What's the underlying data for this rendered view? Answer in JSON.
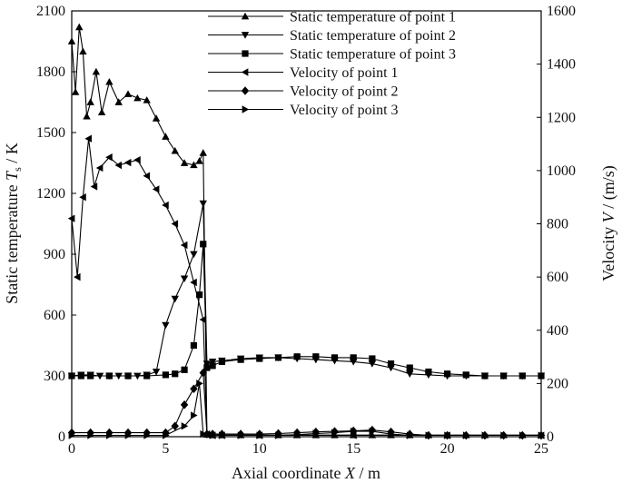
{
  "chart_data": {
    "type": "line",
    "title": "",
    "xlabel": "Axial coordinate X / m",
    "ylabel_left": "Static temperature T_s / K",
    "ylabel_right": "Velocity V / (m/s)",
    "xlabel_parts": {
      "pre": "Axial coordinate ",
      "var": "X",
      "post": " / m"
    },
    "ylabel_left_parts": {
      "pre": "Static temperature ",
      "var": "T",
      "sub": "s",
      "post": " / K"
    },
    "ylabel_right_parts": {
      "pre": "Velocity ",
      "var": "V",
      "post": " / (m/s)"
    },
    "xlim": [
      0,
      25
    ],
    "ylim_left": [
      0,
      2100
    ],
    "ylim_right": [
      0,
      1600
    ],
    "xticks": [
      0,
      5,
      10,
      15,
      20,
      25
    ],
    "yticks_left": [
      0,
      300,
      600,
      900,
      1200,
      1500,
      1800,
      2100
    ],
    "yticks_right": [
      0,
      200,
      400,
      600,
      800,
      1000,
      1200,
      1400,
      1600
    ],
    "grid": false,
    "legend_position": "top-right",
    "series": [
      {
        "name": "Static temperature of point 1",
        "axis": "left",
        "marker": "triangle-up",
        "x": [
          0,
          0.2,
          0.4,
          0.6,
          0.8,
          1.0,
          1.3,
          1.6,
          2.0,
          2.5,
          3.0,
          3.5,
          4.0,
          4.5,
          5.0,
          5.5,
          6.0,
          6.5,
          6.8,
          7.0,
          7.2,
          7.5,
          8,
          9,
          10,
          11,
          12,
          13,
          14,
          15,
          16,
          17,
          18,
          19,
          20,
          21,
          22,
          23,
          24,
          25
        ],
        "y": [
          1950,
          1700,
          2020,
          1900,
          1580,
          1650,
          1800,
          1600,
          1750,
          1650,
          1690,
          1670,
          1660,
          1570,
          1480,
          1410,
          1350,
          1340,
          1360,
          1400,
          10,
          8,
          8,
          8,
          8,
          8,
          8,
          8,
          8,
          8,
          8,
          8,
          8,
          8,
          8,
          8,
          8,
          8,
          8,
          8
        ]
      },
      {
        "name": "Static temperature of point 2",
        "axis": "left",
        "marker": "triangle-down",
        "x": [
          0,
          0.5,
          1,
          1.5,
          2,
          2.5,
          3,
          3.5,
          4,
          4.5,
          5,
          5.5,
          6,
          6.5,
          7,
          7.2,
          7.5,
          8,
          9,
          10,
          11,
          12,
          13,
          14,
          15,
          16,
          17,
          18,
          19,
          20,
          21,
          22,
          23,
          24,
          25
        ],
        "y": [
          300,
          305,
          305,
          300,
          300,
          300,
          300,
          300,
          305,
          320,
          550,
          680,
          780,
          900,
          1150,
          360,
          370,
          375,
          385,
          390,
          390,
          385,
          380,
          375,
          370,
          360,
          340,
          310,
          305,
          300,
          300,
          300,
          300,
          300,
          300
        ]
      },
      {
        "name": "Static temperature of point 3",
        "axis": "left",
        "marker": "square",
        "x": [
          0,
          0.5,
          1,
          2,
          3,
          4,
          5,
          5.5,
          6,
          6.5,
          6.8,
          7,
          7.2,
          7.5,
          8,
          9,
          10,
          11,
          12,
          13,
          14,
          15,
          16,
          17,
          18,
          19,
          20,
          21,
          22,
          23,
          24,
          25
        ],
        "y": [
          300,
          300,
          300,
          300,
          300,
          300,
          305,
          310,
          330,
          450,
          700,
          950,
          340,
          350,
          370,
          380,
          385,
          390,
          395,
          395,
          390,
          390,
          385,
          360,
          340,
          320,
          310,
          305,
          300,
          300,
          300,
          300
        ]
      },
      {
        "name": "Velocity of point 1",
        "axis": "right",
        "marker": "triangle-left",
        "x": [
          0,
          0.3,
          0.6,
          0.9,
          1.2,
          1.5,
          2,
          2.5,
          3,
          3.5,
          4,
          4.5,
          5,
          5.5,
          6,
          6.5,
          7,
          7.2,
          7.5,
          8,
          10,
          15,
          20,
          25
        ],
        "y": [
          820,
          600,
          900,
          1120,
          940,
          1010,
          1050,
          1020,
          1030,
          1040,
          980,
          930,
          870,
          800,
          720,
          580,
          440,
          10,
          5,
          5,
          5,
          5,
          5,
          5
        ]
      },
      {
        "name": "Velocity of point 2",
        "axis": "right",
        "marker": "diamond",
        "x": [
          0,
          1,
          2,
          3,
          4,
          5,
          5.5,
          6,
          6.5,
          7,
          7.2,
          7.5,
          8,
          9,
          10,
          11,
          12,
          13,
          14,
          15,
          16,
          17,
          18,
          19,
          20,
          21,
          22,
          23,
          24,
          25
        ],
        "y": [
          15,
          15,
          15,
          15,
          15,
          15,
          40,
          120,
          180,
          240,
          10,
          10,
          10,
          10,
          10,
          12,
          15,
          18,
          20,
          22,
          25,
          18,
          10,
          5,
          5,
          5,
          5,
          5,
          5,
          5
        ]
      },
      {
        "name": "Velocity of point 3",
        "axis": "right",
        "marker": "triangle-right",
        "x": [
          0,
          1,
          2,
          3,
          4,
          5,
          6,
          6.5,
          6.8,
          7,
          7.5,
          8,
          9,
          10,
          11,
          12,
          13,
          14,
          15,
          16,
          17,
          18,
          19,
          20,
          21,
          22,
          23,
          24,
          25
        ],
        "y": [
          5,
          5,
          5,
          5,
          5,
          5,
          40,
          80,
          200,
          10,
          5,
          5,
          5,
          5,
          5,
          8,
          12,
          15,
          20,
          20,
          10,
          5,
          5,
          5,
          5,
          5,
          5,
          5,
          5
        ]
      }
    ]
  }
}
